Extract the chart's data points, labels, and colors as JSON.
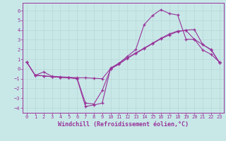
{
  "background_color": "#c8e8e8",
  "grid_color": "#b8d8d8",
  "line_color": "#993399",
  "xlim": [
    -0.5,
    23.5
  ],
  "ylim": [
    -4.5,
    6.8
  ],
  "yticks": [
    -4,
    -3,
    -2,
    -1,
    0,
    1,
    2,
    3,
    4,
    5,
    6
  ],
  "xticks": [
    0,
    1,
    2,
    3,
    4,
    5,
    6,
    7,
    8,
    9,
    10,
    11,
    12,
    13,
    14,
    15,
    16,
    17,
    18,
    19,
    20,
    21,
    22,
    23
  ],
  "xlabel": "Windchill (Refroidissement éolien,°C)",
  "curves": [
    [
      0.7,
      -0.65,
      -0.7,
      -0.8,
      -0.85,
      -0.9,
      -0.95,
      -3.5,
      -3.6,
      -2.2,
      0.0,
      0.5,
      1.1,
      1.6,
      2.1,
      2.6,
      3.1,
      3.5,
      3.85,
      4.0,
      4.05,
      2.5,
      2.0,
      0.65
    ],
    [
      0.7,
      -0.65,
      -0.3,
      -0.75,
      -0.8,
      -0.85,
      -0.9,
      -0.9,
      -0.95,
      -1.0,
      0.05,
      0.55,
      1.15,
      1.65,
      2.15,
      2.65,
      3.15,
      3.6,
      3.9,
      3.95,
      3.05,
      2.5,
      1.95,
      0.65
    ],
    [
      0.7,
      -0.65,
      -0.7,
      -0.8,
      -0.85,
      -0.9,
      -1.0,
      -3.85,
      -3.7,
      -3.5,
      0.1,
      0.6,
      1.3,
      2.0,
      4.55,
      5.5,
      6.1,
      5.7,
      5.55,
      3.05,
      3.05,
      1.95,
      1.5,
      0.7
    ]
  ],
  "figsize": [
    3.2,
    2.0
  ],
  "dpi": 100,
  "tick_fontsize": 5.0,
  "label_fontsize": 6.0
}
